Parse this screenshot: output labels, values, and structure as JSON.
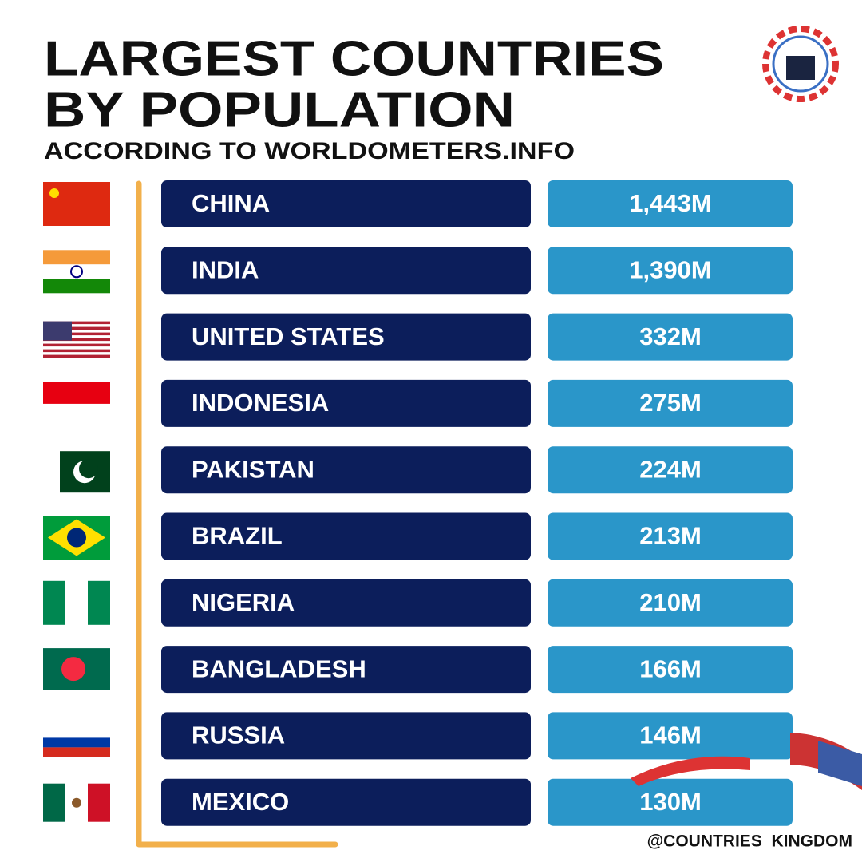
{
  "header": {
    "title_lines": [
      "LARGEST COUNTRIES",
      "BY POPULATION"
    ],
    "subtitle": "ACCORDING TO WORLDOMETERS.INFO"
  },
  "table": {
    "rows": [
      [
        "CHINA",
        "1,443M"
      ],
      [
        "INDIA",
        "1,390M"
      ],
      [
        "UNITED STATES",
        "332M"
      ],
      [
        "INDONESIA",
        "275M"
      ],
      [
        "PAKISTAN",
        "224M"
      ],
      [
        "BRAZIL",
        "213M"
      ],
      [
        "NIGERIA",
        "210M"
      ],
      [
        "BANGLADESH",
        "166M"
      ],
      [
        "RUSSIA",
        "146M"
      ],
      [
        "MEXICO",
        "130M"
      ]
    ]
  },
  "footer": {
    "handle": "@COUNTRIES_KINGDOM"
  }
}
